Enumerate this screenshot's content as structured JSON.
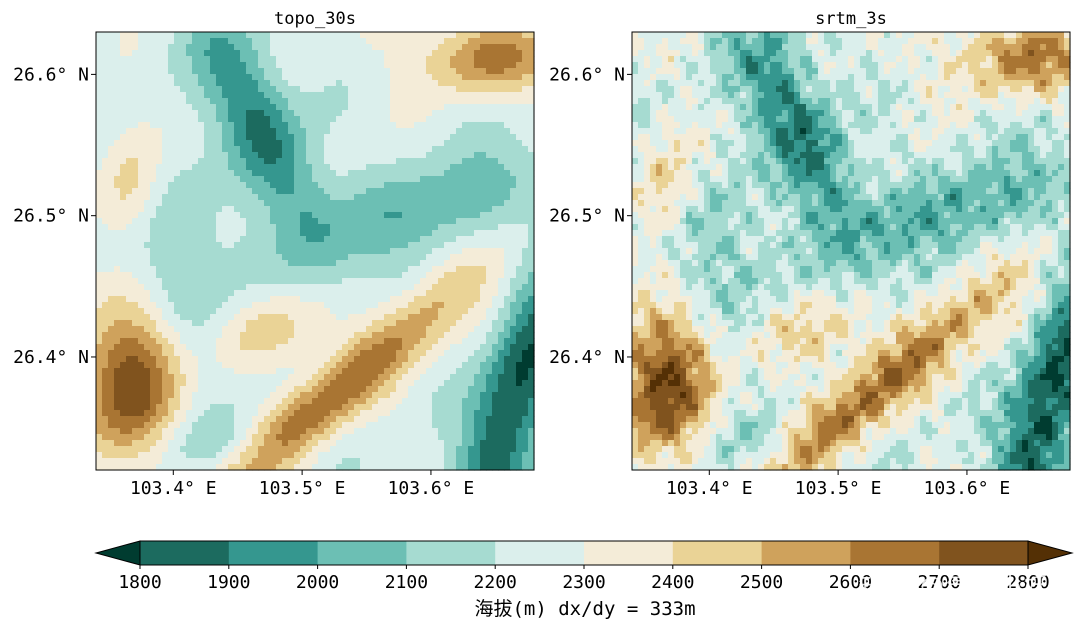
{
  "chart_data": {
    "type": "heatmap",
    "panels": [
      {
        "title": "topo_30s",
        "smooth": 1
      },
      {
        "title": "srtm_3s",
        "smooth": 0
      }
    ],
    "x_axis": {
      "ticks": [
        103.4,
        103.5,
        103.6
      ],
      "tick_labels": [
        "103.4° E",
        "103.5° E",
        "103.6° E"
      ],
      "range": [
        103.34,
        103.68
      ]
    },
    "y_axis": {
      "ticks": [
        26.6,
        26.5,
        26.4
      ],
      "tick_labels": [
        "26.6° N",
        "26.5° N",
        "26.4° N"
      ],
      "range": [
        26.32,
        26.63
      ]
    },
    "colorbar": {
      "levels": [
        1800,
        1900,
        2000,
        2100,
        2200,
        2300,
        2400,
        2500,
        2600,
        2700,
        2800
      ],
      "level_labels": [
        "1800",
        "1900",
        "2000",
        "2100",
        "2200",
        "2300",
        "2400",
        "2500",
        "2600",
        "2700",
        "2800"
      ],
      "colors": [
        "#003c30",
        "#1c6b5f",
        "#35978f",
        "#6cbfb4",
        "#a6dbd1",
        "#dbefec",
        "#f4ecd8",
        "#ead396",
        "#cfa25c",
        "#a97533",
        "#80531e",
        "#543005"
      ],
      "extend": "both",
      "label": "海拔(m)  dx/dy = 333m"
    }
  },
  "watermark": "知乎 @气象小妖"
}
